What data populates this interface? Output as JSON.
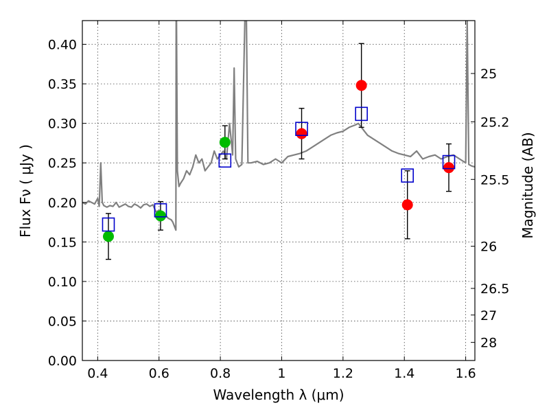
{
  "chart_data": {
    "type": "scatter",
    "title": "",
    "xlabel": "Wavelength  λ (μm)",
    "ylabel": "Flux  Fν  ( μJy )",
    "ylabel_right": "Magnitude (AB)",
    "xlim": [
      0.35,
      1.63
    ],
    "ylim": [
      0.0,
      0.43
    ],
    "grid": true,
    "x_ticks": [
      0.4,
      0.6,
      0.8,
      1.0,
      1.2,
      1.4,
      1.6
    ],
    "x_tick_labels": [
      "0.4",
      "0.6",
      "0.8",
      "1",
      "1.2",
      "1.4",
      "1.6"
    ],
    "y_ticks": [
      0.0,
      0.05,
      0.1,
      0.15,
      0.2,
      0.25,
      0.3,
      0.35,
      0.4
    ],
    "y_tick_labels": [
      "0.00",
      "0.05",
      "0.10",
      "0.15",
      "0.20",
      "0.25",
      "0.30",
      "0.35",
      "0.40"
    ],
    "right_axis": {
      "label": "Magnitude (AB)",
      "ticks": [
        25,
        25.2,
        25.5,
        26,
        26.5,
        27,
        28
      ],
      "tick_labels": [
        "25",
        "25.2",
        "25.5",
        "26",
        "26.5",
        "27",
        "28"
      ]
    },
    "series": [
      {
        "name": "model spectrum",
        "kind": "line",
        "color": "#808080",
        "x": [
          0.35,
          0.36,
          0.37,
          0.38,
          0.39,
          0.4,
          0.405,
          0.41,
          0.415,
          0.42,
          0.43,
          0.44,
          0.45,
          0.46,
          0.47,
          0.48,
          0.49,
          0.5,
          0.51,
          0.52,
          0.53,
          0.54,
          0.55,
          0.56,
          0.57,
          0.58,
          0.59,
          0.6,
          0.61,
          0.62,
          0.63,
          0.64,
          0.645,
          0.65,
          0.655,
          0.656,
          0.657,
          0.66,
          0.665,
          0.67,
          0.68,
          0.69,
          0.7,
          0.71,
          0.72,
          0.73,
          0.74,
          0.75,
          0.76,
          0.77,
          0.78,
          0.79,
          0.8,
          0.81,
          0.82,
          0.83,
          0.84,
          0.845,
          0.85,
          0.86,
          0.87,
          0.88,
          0.885,
          0.89,
          0.9,
          0.92,
          0.94,
          0.96,
          0.98,
          1.0,
          1.02,
          1.04,
          1.06,
          1.08,
          1.1,
          1.12,
          1.14,
          1.16,
          1.18,
          1.2,
          1.22,
          1.24,
          1.25,
          1.26,
          1.27,
          1.28,
          1.3,
          1.32,
          1.34,
          1.36,
          1.38,
          1.4,
          1.42,
          1.44,
          1.46,
          1.48,
          1.5,
          1.52,
          1.54,
          1.56,
          1.58,
          1.6,
          1.605,
          1.61,
          1.62,
          1.63
        ],
        "y": [
          0.2,
          0.198,
          0.202,
          0.2,
          0.198,
          0.205,
          0.195,
          0.25,
          0.2,
          0.196,
          0.194,
          0.196,
          0.195,
          0.2,
          0.194,
          0.196,
          0.198,
          0.195,
          0.194,
          0.198,
          0.196,
          0.193,
          0.197,
          0.198,
          0.195,
          0.197,
          0.188,
          0.19,
          0.186,
          0.184,
          0.18,
          0.178,
          0.175,
          0.17,
          0.165,
          0.43,
          0.43,
          0.24,
          0.22,
          0.224,
          0.23,
          0.24,
          0.235,
          0.245,
          0.26,
          0.25,
          0.255,
          0.24,
          0.245,
          0.25,
          0.265,
          0.255,
          0.26,
          0.265,
          0.255,
          0.3,
          0.26,
          0.37,
          0.255,
          0.245,
          0.248,
          0.43,
          0.43,
          0.25,
          0.25,
          0.252,
          0.248,
          0.25,
          0.255,
          0.25,
          0.258,
          0.26,
          0.262,
          0.265,
          0.27,
          0.275,
          0.28,
          0.285,
          0.288,
          0.29,
          0.295,
          0.298,
          0.3,
          0.295,
          0.29,
          0.285,
          0.28,
          0.275,
          0.27,
          0.265,
          0.262,
          0.26,
          0.258,
          0.265,
          0.255,
          0.258,
          0.26,
          0.255,
          0.258,
          0.26,
          0.255,
          0.25,
          0.43,
          0.248,
          0.246,
          0.245
        ]
      },
      {
        "name": "observed (green)",
        "kind": "points",
        "marker": "circle",
        "color": "#00bb00",
        "x": [
          0.435,
          0.605,
          0.815
        ],
        "y": [
          0.157,
          0.183,
          0.276
        ],
        "yerr_low": [
          0.029,
          0.018,
          0.021
        ],
        "yerr_high": [
          0.029,
          0.018,
          0.021
        ]
      },
      {
        "name": "observed (red)",
        "kind": "points",
        "marker": "circle",
        "color": "#ff0000",
        "x": [
          1.065,
          1.26,
          1.41,
          1.545
        ],
        "y": [
          0.287,
          0.348,
          0.197,
          0.244
        ],
        "yerr_low": [
          0.032,
          0.053,
          0.043,
          0.03
        ],
        "yerr_high": [
          0.032,
          0.053,
          0.043,
          0.03
        ]
      },
      {
        "name": "model photometry",
        "kind": "points",
        "marker": "open-square",
        "color": "#0000cc",
        "x": [
          0.435,
          0.605,
          0.815,
          1.065,
          1.26,
          1.41,
          1.545
        ],
        "y": [
          0.172,
          0.19,
          0.253,
          0.293,
          0.312,
          0.234,
          0.251
        ]
      }
    ]
  }
}
